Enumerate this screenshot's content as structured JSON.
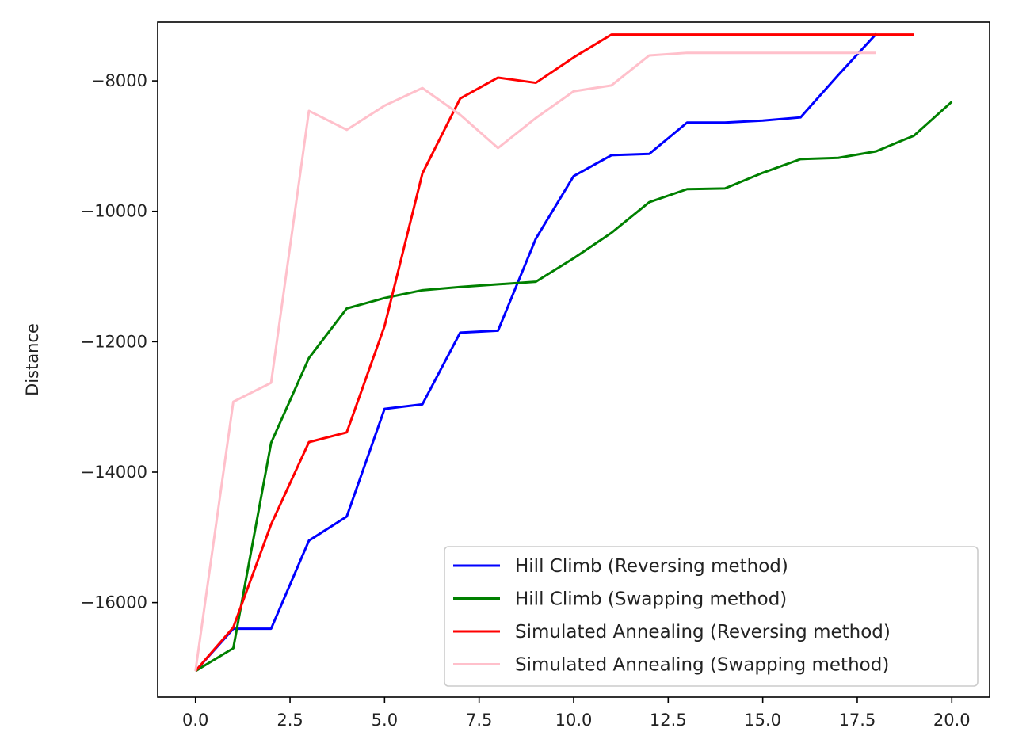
{
  "chart_data": {
    "type": "line",
    "title": "",
    "xlabel": "",
    "ylabel": "Distance",
    "xlim": [
      -1.0,
      21.0
    ],
    "ylim": [
      -17450,
      -7100
    ],
    "grid": false,
    "legend_position": "bottom-right",
    "x_ticks": [
      "0.0",
      "2.5",
      "5.0",
      "7.5",
      "10.0",
      "12.5",
      "15.0",
      "17.5",
      "20.0"
    ],
    "y_ticks": [
      "−8000",
      "−10000",
      "−12000",
      "−14000",
      "−16000"
    ],
    "series": [
      {
        "name": "Hill Climb (Reversing method)",
        "color": "#0000ff",
        "x": [
          0,
          1,
          2,
          3,
          4,
          5,
          6,
          7,
          8,
          9,
          10,
          11,
          12,
          13,
          14,
          15,
          16,
          17,
          18
        ],
        "values": [
          -17050,
          -16400,
          -16400,
          -15050,
          -14680,
          -13030,
          -12960,
          -11860,
          -11830,
          -10420,
          -9460,
          -9140,
          -9120,
          -8640,
          -8640,
          -8610,
          -8560,
          -7910,
          -7280
        ]
      },
      {
        "name": "Hill Climb (Swapping method)",
        "color": "#008000",
        "x": [
          0,
          1,
          2,
          3,
          4,
          5,
          6,
          7,
          8,
          9,
          10,
          11,
          12,
          13,
          14,
          15,
          16,
          17,
          18,
          19,
          20
        ],
        "values": [
          -17050,
          -16700,
          -13550,
          -12250,
          -11490,
          -11330,
          -11210,
          -11160,
          -11120,
          -11080,
          -10720,
          -10330,
          -9860,
          -9660,
          -9650,
          -9410,
          -9200,
          -9180,
          -9080,
          -8840,
          -8320
        ]
      },
      {
        "name": "Simulated Annealing (Reversing method)",
        "color": "#ff0000",
        "x": [
          0,
          1,
          2,
          3,
          4,
          5,
          6,
          7,
          8,
          9,
          10,
          11,
          12,
          13,
          14,
          15,
          16,
          17,
          18,
          19
        ],
        "values": [
          -17050,
          -16380,
          -14800,
          -13540,
          -13390,
          -11760,
          -9420,
          -8270,
          -7950,
          -8030,
          -7640,
          -7290,
          -7290,
          -7290,
          -7290,
          -7290,
          -7290,
          -7290,
          -7290,
          -7290
        ]
      },
      {
        "name": "Simulated Annealing (Swapping method)",
        "color": "#ffc0cb",
        "x": [
          0,
          1,
          2,
          3,
          4,
          5,
          6,
          7,
          8,
          9,
          10,
          11,
          12,
          13,
          14,
          15,
          16,
          17,
          18
        ],
        "values": [
          -17050,
          -12920,
          -12630,
          -8460,
          -8750,
          -8380,
          -8110,
          -8520,
          -9030,
          -8570,
          -8160,
          -8070,
          -7610,
          -7570,
          -7570,
          -7570,
          -7570,
          -7570,
          -7570
        ]
      }
    ]
  }
}
